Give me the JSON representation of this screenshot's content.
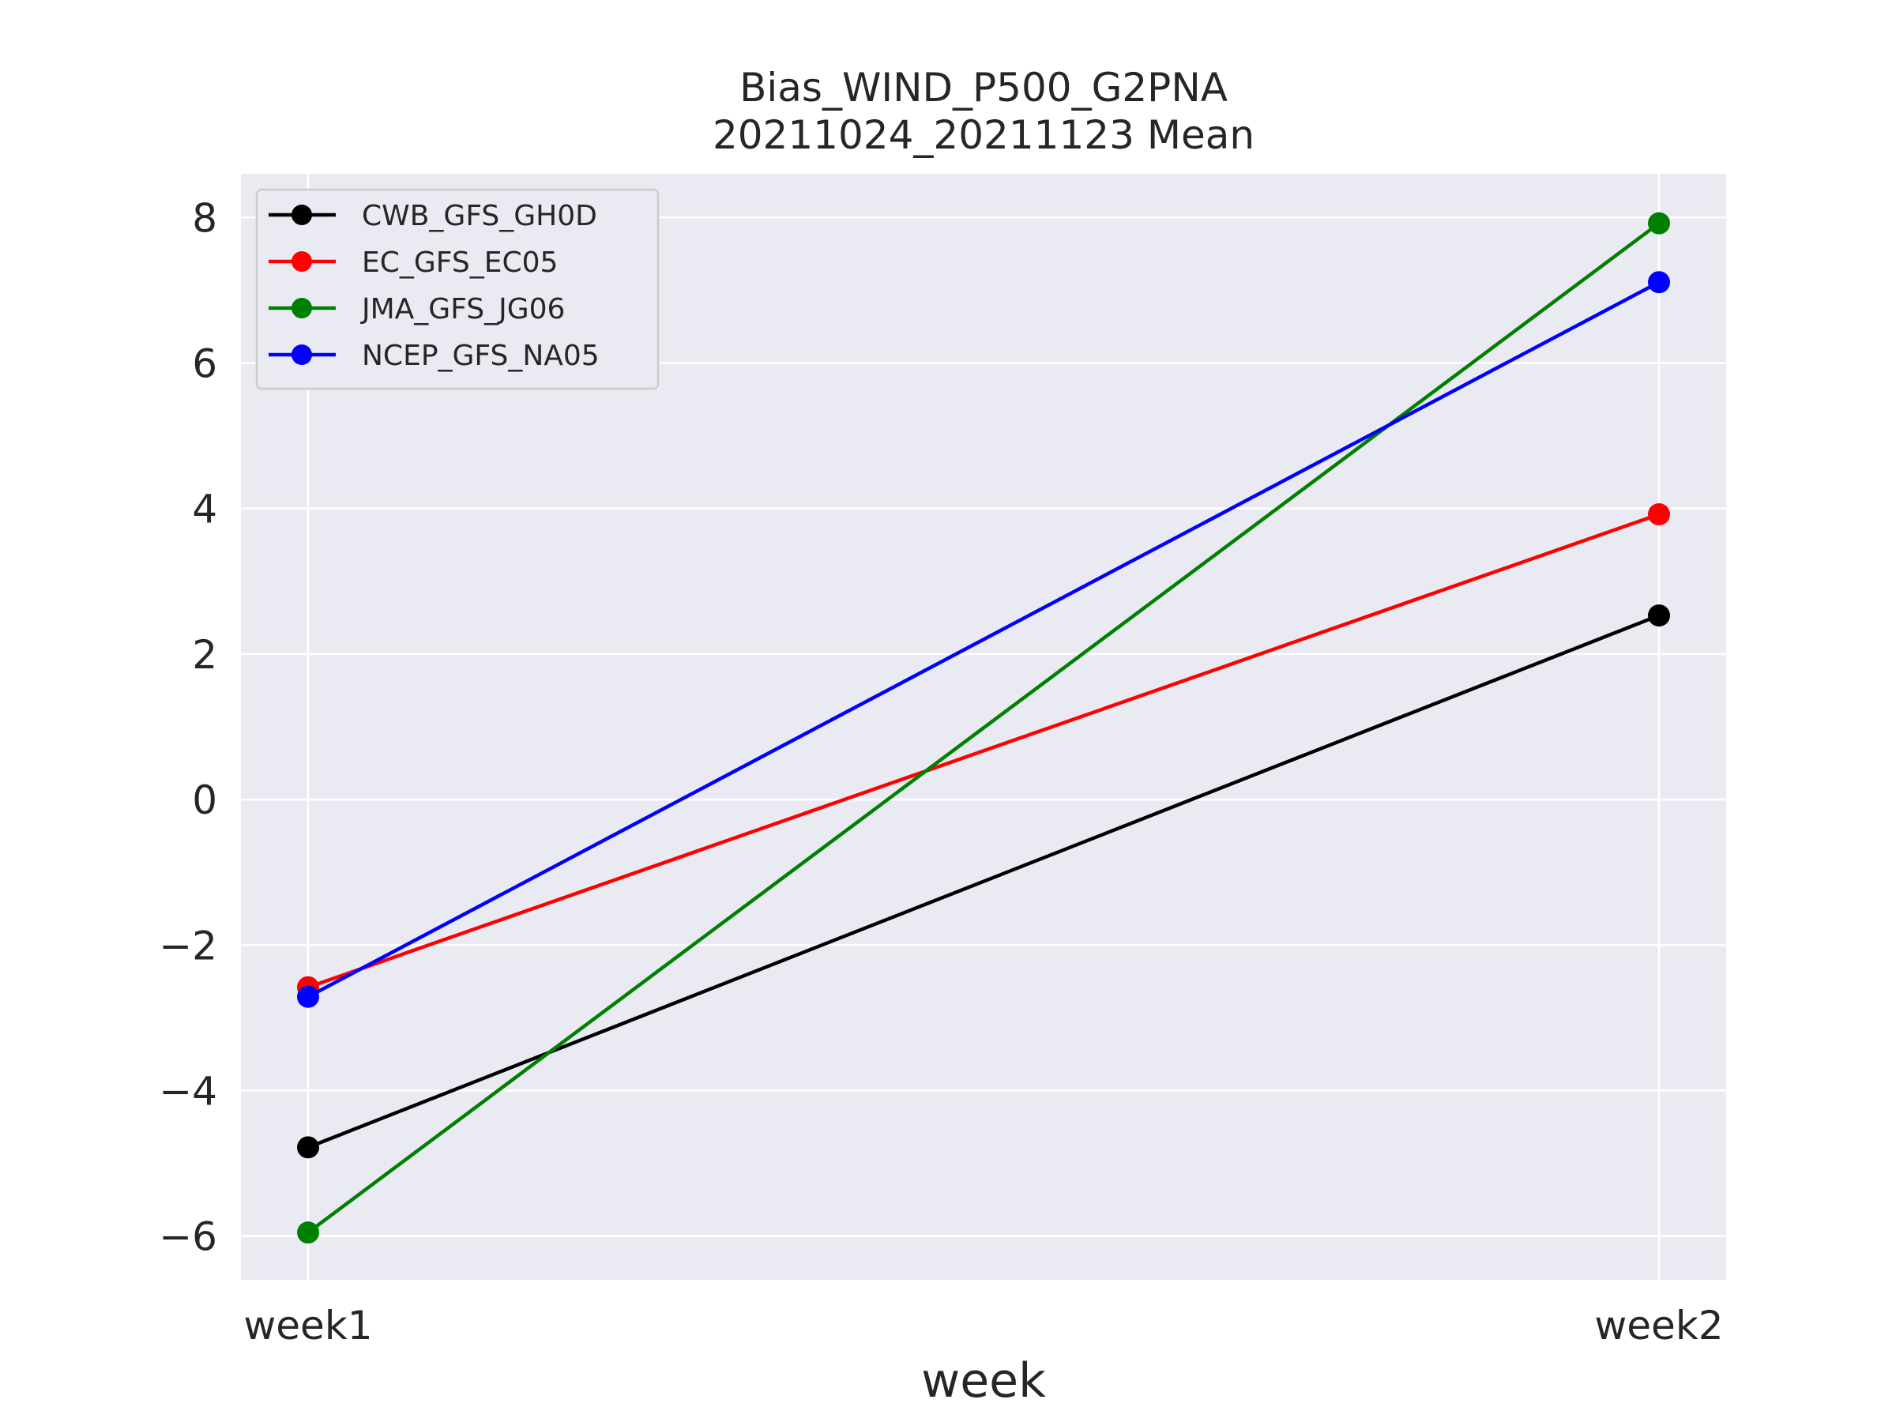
{
  "chart_data": {
    "type": "line",
    "title": "Bias_WIND_P500_G2PNA",
    "subtitle": "20211024_20211123 Mean",
    "xlabel": "week",
    "ylabel": "",
    "categories": [
      "week1",
      "week2"
    ],
    "ylim": [
      -6.6,
      8.6
    ],
    "yticks": [
      8,
      6,
      4,
      2,
      0,
      -2,
      -4,
      -6
    ],
    "ytick_labels": [
      "8",
      "6",
      "4",
      "2",
      "0",
      "−2",
      "−4",
      "−6"
    ],
    "grid": true,
    "legend_position": "top-left",
    "background": "#eaeaf2",
    "series": [
      {
        "name": "CWB_GFS_GH0D",
        "color": "#000000",
        "values": [
          -4.78,
          2.53
        ]
      },
      {
        "name": "EC_GFS_EC05",
        "color": "#ff0000",
        "values": [
          -2.58,
          3.92
        ]
      },
      {
        "name": "JMA_GFS_JG06",
        "color": "#008000",
        "values": [
          -5.95,
          7.92
        ]
      },
      {
        "name": "NCEP_GFS_NA05",
        "color": "#0000ff",
        "values": [
          -2.71,
          7.11
        ]
      }
    ]
  }
}
